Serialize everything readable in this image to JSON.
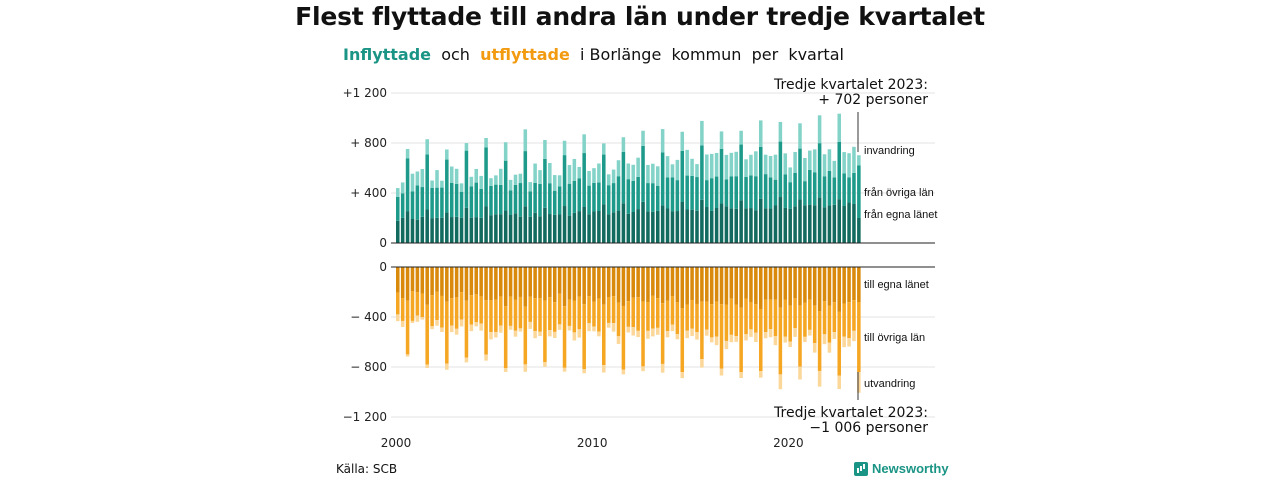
{
  "title": "Flest flyttade till andra län under tredje kvartalet",
  "subtitle": {
    "in_word": "Inflyttade",
    "and_word": "och",
    "out_word": "utflyttade",
    "rest": "i Borlänge  kommun  per  kvartal"
  },
  "source": "Källa: SCB",
  "logo": {
    "text": "Newsworthy",
    "icon": "newsworthy-logo-icon"
  },
  "colors": {
    "from_own_county": "#136a5f",
    "from_other_counties": "#1d9a8a",
    "immigration": "#83d3c8",
    "to_own_county": "#d98a0c",
    "to_other_counties": "#f5a623",
    "emigration": "#fbd79a"
  },
  "chart_data": {
    "type": "bar",
    "stacked": true,
    "x_axis": {
      "ticks": [
        "2000",
        "2010",
        "2020"
      ]
    },
    "y_axis": {
      "ylim": [
        -1300,
        1300
      ],
      "ticks": [
        "+1 200",
        "+  800",
        "+  400",
        "0",
        "0",
        "−  400",
        "−  800",
        "−1 200"
      ]
    },
    "series_labels": {
      "in": [
        "invandring",
        "från övriga län",
        "från egna länet"
      ],
      "out": [
        "till egna länet",
        "till övriga län",
        "utvandring"
      ]
    },
    "annotation_top": [
      "Tredje kvartalet 2023:",
      "+  702 personer"
    ],
    "annotation_bottom": [
      "Tredje kvartalet 2023:",
      "−1 006 personer"
    ],
    "period": {
      "start_year": 2000,
      "start_quarter": 1,
      "quarters": 95
    },
    "in_own_peaks": [
      300,
      300,
      290,
      300,
      300,
      300,
      300,
      300,
      300,
      300
    ],
    "in_total_q3_pattern": [
      720,
      680,
      650,
      700,
      700,
      650,
      700,
      720,
      800,
      820
    ],
    "last_quarter": {
      "in_total": 702,
      "out_total": 1006
    }
  }
}
